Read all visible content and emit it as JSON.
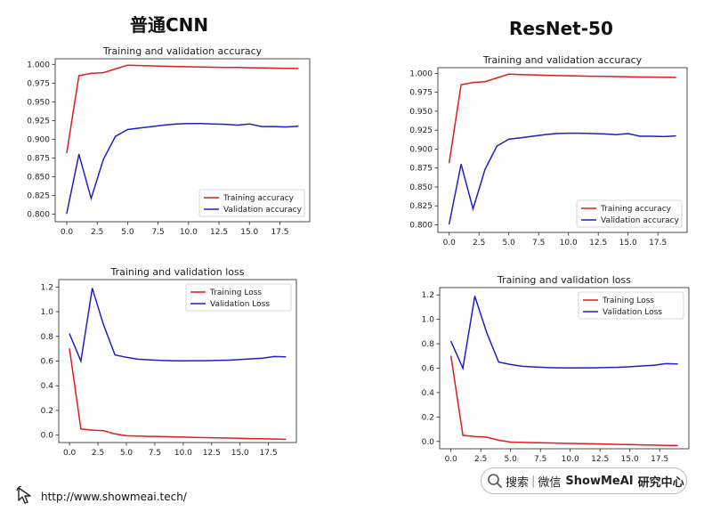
{
  "headings": {
    "left": "普通CNN",
    "right": "ResNet-50"
  },
  "footer": {
    "url": "http://www.showmeai.tech/"
  },
  "brand": {
    "search": "搜索",
    "separator": "|",
    "wechat": "微信",
    "name": "ShowMeAI",
    "suffix": "研究中心"
  },
  "colors": {
    "training": "#e41a1c",
    "validation": "#1f1fc8"
  },
  "chart_data": [
    {
      "type": "line",
      "group": "普通CNN",
      "title": "Training and validation accuracy",
      "xlim": [
        -0.95,
        19.95
      ],
      "ylim": [
        0.79,
        1.0075
      ],
      "xticks": [
        "0.0",
        "2.5",
        "5.0",
        "7.5",
        "10.0",
        "12.5",
        "15.0",
        "17.5"
      ],
      "yticks": [
        "0.800",
        "0.825",
        "0.850",
        "0.875",
        "0.900",
        "0.925",
        "0.950",
        "0.975",
        "1.000"
      ],
      "legend": "lower right",
      "x": [
        0,
        1,
        2,
        3,
        4,
        5,
        6,
        7,
        8,
        9,
        10,
        11,
        12,
        13,
        14,
        15,
        16,
        17,
        18,
        19
      ],
      "series": [
        {
          "name": "Training accuracy",
          "color": "#e41a1c",
          "values": [
            0.882,
            0.985,
            0.988,
            0.989,
            0.994,
            0.999,
            0.9985,
            0.998,
            0.9975,
            0.997,
            0.9968,
            0.9965,
            0.9962,
            0.996,
            0.9958,
            0.9955,
            0.9952,
            0.995,
            0.9948,
            0.9946
          ]
        },
        {
          "name": "Validation accuracy",
          "color": "#1f1fc8",
          "values": [
            0.801,
            0.88,
            0.821,
            0.873,
            0.904,
            0.913,
            0.915,
            0.917,
            0.919,
            0.9205,
            0.921,
            0.921,
            0.9205,
            0.92,
            0.919,
            0.9205,
            0.917,
            0.917,
            0.9165,
            0.9175
          ]
        }
      ]
    },
    {
      "type": "line",
      "group": "普通CNN",
      "title": "Training and validation loss",
      "xlim": [
        -0.95,
        19.95
      ],
      "ylim": [
        -0.06,
        1.26
      ],
      "xticks": [
        "0.0",
        "2.5",
        "5.0",
        "7.5",
        "10.0",
        "12.5",
        "15.0",
        "17.5"
      ],
      "yticks": [
        "0.0",
        "0.2",
        "0.4",
        "0.6",
        "0.8",
        "1.0",
        "1.2"
      ],
      "legend": "upper right",
      "x": [
        0,
        1,
        2,
        3,
        4,
        5,
        6,
        7,
        8,
        9,
        10,
        11,
        12,
        13,
        14,
        15,
        16,
        17,
        18,
        19
      ],
      "series": [
        {
          "name": "Training Loss",
          "color": "#e41a1c",
          "values": [
            0.7,
            0.05,
            0.04,
            0.035,
            0.01,
            -0.005,
            -0.008,
            -0.01,
            -0.012,
            -0.014,
            -0.016,
            -0.018,
            -0.02,
            -0.022,
            -0.024,
            -0.026,
            -0.028,
            -0.03,
            -0.032,
            -0.034
          ]
        },
        {
          "name": "Validation Loss",
          "color": "#1f1fc8",
          "values": [
            0.82,
            0.6,
            1.19,
            0.89,
            0.65,
            0.63,
            0.615,
            0.61,
            0.605,
            0.603,
            0.602,
            0.603,
            0.603,
            0.605,
            0.607,
            0.612,
            0.618,
            0.624,
            0.637,
            0.634
          ]
        }
      ]
    },
    {
      "type": "line",
      "group": "ResNet-50",
      "title": "Training and validation accuracy",
      "xlim": [
        -0.95,
        19.95
      ],
      "ylim": [
        0.79,
        1.0075
      ],
      "xticks": [
        "0.0",
        "2.5",
        "5.0",
        "7.5",
        "10.0",
        "12.5",
        "15.0",
        "17.5"
      ],
      "yticks": [
        "0.800",
        "0.825",
        "0.850",
        "0.875",
        "0.900",
        "0.925",
        "0.950",
        "0.975",
        "1.000"
      ],
      "legend": "lower right",
      "x": [
        0,
        1,
        2,
        3,
        4,
        5,
        6,
        7,
        8,
        9,
        10,
        11,
        12,
        13,
        14,
        15,
        16,
        17,
        18,
        19
      ],
      "series": [
        {
          "name": "Training accuracy",
          "color": "#e41a1c",
          "values": [
            0.882,
            0.985,
            0.988,
            0.989,
            0.994,
            0.999,
            0.9985,
            0.998,
            0.9975,
            0.997,
            0.9968,
            0.9965,
            0.9962,
            0.996,
            0.9958,
            0.9955,
            0.9952,
            0.995,
            0.9948,
            0.9946
          ]
        },
        {
          "name": "Validation accuracy",
          "color": "#1f1fc8",
          "values": [
            0.801,
            0.88,
            0.821,
            0.873,
            0.904,
            0.913,
            0.915,
            0.917,
            0.919,
            0.9205,
            0.921,
            0.921,
            0.9205,
            0.92,
            0.919,
            0.9205,
            0.917,
            0.917,
            0.9165,
            0.9175
          ]
        }
      ]
    },
    {
      "type": "line",
      "group": "ResNet-50",
      "title": "Training and validation loss",
      "xlim": [
        -0.95,
        19.95
      ],
      "ylim": [
        -0.06,
        1.26
      ],
      "xticks": [
        "0.0",
        "2.5",
        "5.0",
        "7.5",
        "10.0",
        "12.5",
        "15.0",
        "17.5"
      ],
      "yticks": [
        "0.0",
        "0.2",
        "0.4",
        "0.6",
        "0.8",
        "1.0",
        "1.2"
      ],
      "legend": "upper right",
      "x": [
        0,
        1,
        2,
        3,
        4,
        5,
        6,
        7,
        8,
        9,
        10,
        11,
        12,
        13,
        14,
        15,
        16,
        17,
        18,
        19
      ],
      "series": [
        {
          "name": "Training Loss",
          "color": "#e41a1c",
          "values": [
            0.7,
            0.05,
            0.04,
            0.035,
            0.01,
            -0.005,
            -0.008,
            -0.01,
            -0.012,
            -0.014,
            -0.016,
            -0.018,
            -0.02,
            -0.022,
            -0.024,
            -0.026,
            -0.028,
            -0.03,
            -0.032,
            -0.034
          ]
        },
        {
          "name": "Validation Loss",
          "color": "#1f1fc8",
          "values": [
            0.82,
            0.6,
            1.19,
            0.89,
            0.65,
            0.63,
            0.615,
            0.61,
            0.605,
            0.603,
            0.602,
            0.603,
            0.603,
            0.605,
            0.607,
            0.612,
            0.618,
            0.624,
            0.637,
            0.634
          ]
        }
      ]
    }
  ]
}
